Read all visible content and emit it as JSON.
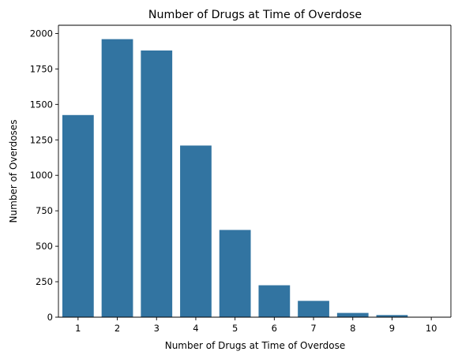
{
  "chart_data": {
    "type": "bar",
    "title": "Number of Drugs at Time of Overdose",
    "xlabel": "Number of Drugs at Time of Overdose",
    "ylabel": "Number of Overdoses",
    "categories": [
      "1",
      "2",
      "3",
      "4",
      "5",
      "6",
      "7",
      "8",
      "9",
      "10"
    ],
    "values": [
      1425,
      1960,
      1880,
      1210,
      615,
      225,
      115,
      30,
      15,
      2
    ],
    "yticks": [
      0,
      250,
      500,
      750,
      1000,
      1250,
      1500,
      1750,
      2000
    ],
    "ytick_labels": [
      "0",
      "250",
      "500",
      "750",
      "1000",
      "1250",
      "1500",
      "1750",
      "2000"
    ],
    "ylim": [
      0,
      2058
    ],
    "grid": false,
    "bar_color": "#3274a1"
  }
}
